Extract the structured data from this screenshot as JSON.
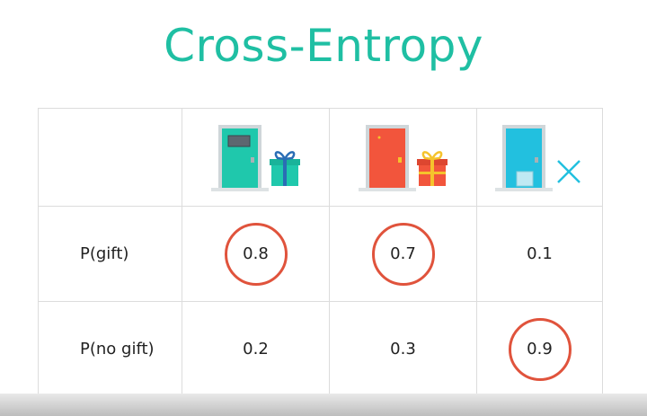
{
  "title": "Cross-Entropy",
  "columns": [
    {
      "door_color": "#1fc8ac",
      "door_icon": "door-with-window-icon",
      "outcome_icon": "gift-icon",
      "outcome_colors": {
        "box": "#1fc8ac",
        "ribbon": "#2a6db5"
      }
    },
    {
      "door_color": "#f2553c",
      "door_icon": "door-icon",
      "outcome_icon": "gift-icon",
      "outcome_colors": {
        "box": "#f2553c",
        "ribbon": "#f5c32c"
      }
    },
    {
      "door_color": "#22c0df",
      "door_icon": "door-with-pet-flap-icon",
      "outcome_icon": "close-icon",
      "outcome_colors": {
        "mark": "#22c0df"
      }
    }
  ],
  "rows": [
    {
      "label": "P(gift)",
      "values": [
        "0.8",
        "0.7",
        "0.1"
      ],
      "circled": [
        true,
        true,
        false
      ]
    },
    {
      "label": "P(no gift)",
      "values": [
        "0.2",
        "0.3",
        "0.9"
      ],
      "circled": [
        false,
        false,
        true
      ]
    }
  ],
  "accent_color": "#1fbfa3",
  "circle_color": "#e0533c"
}
